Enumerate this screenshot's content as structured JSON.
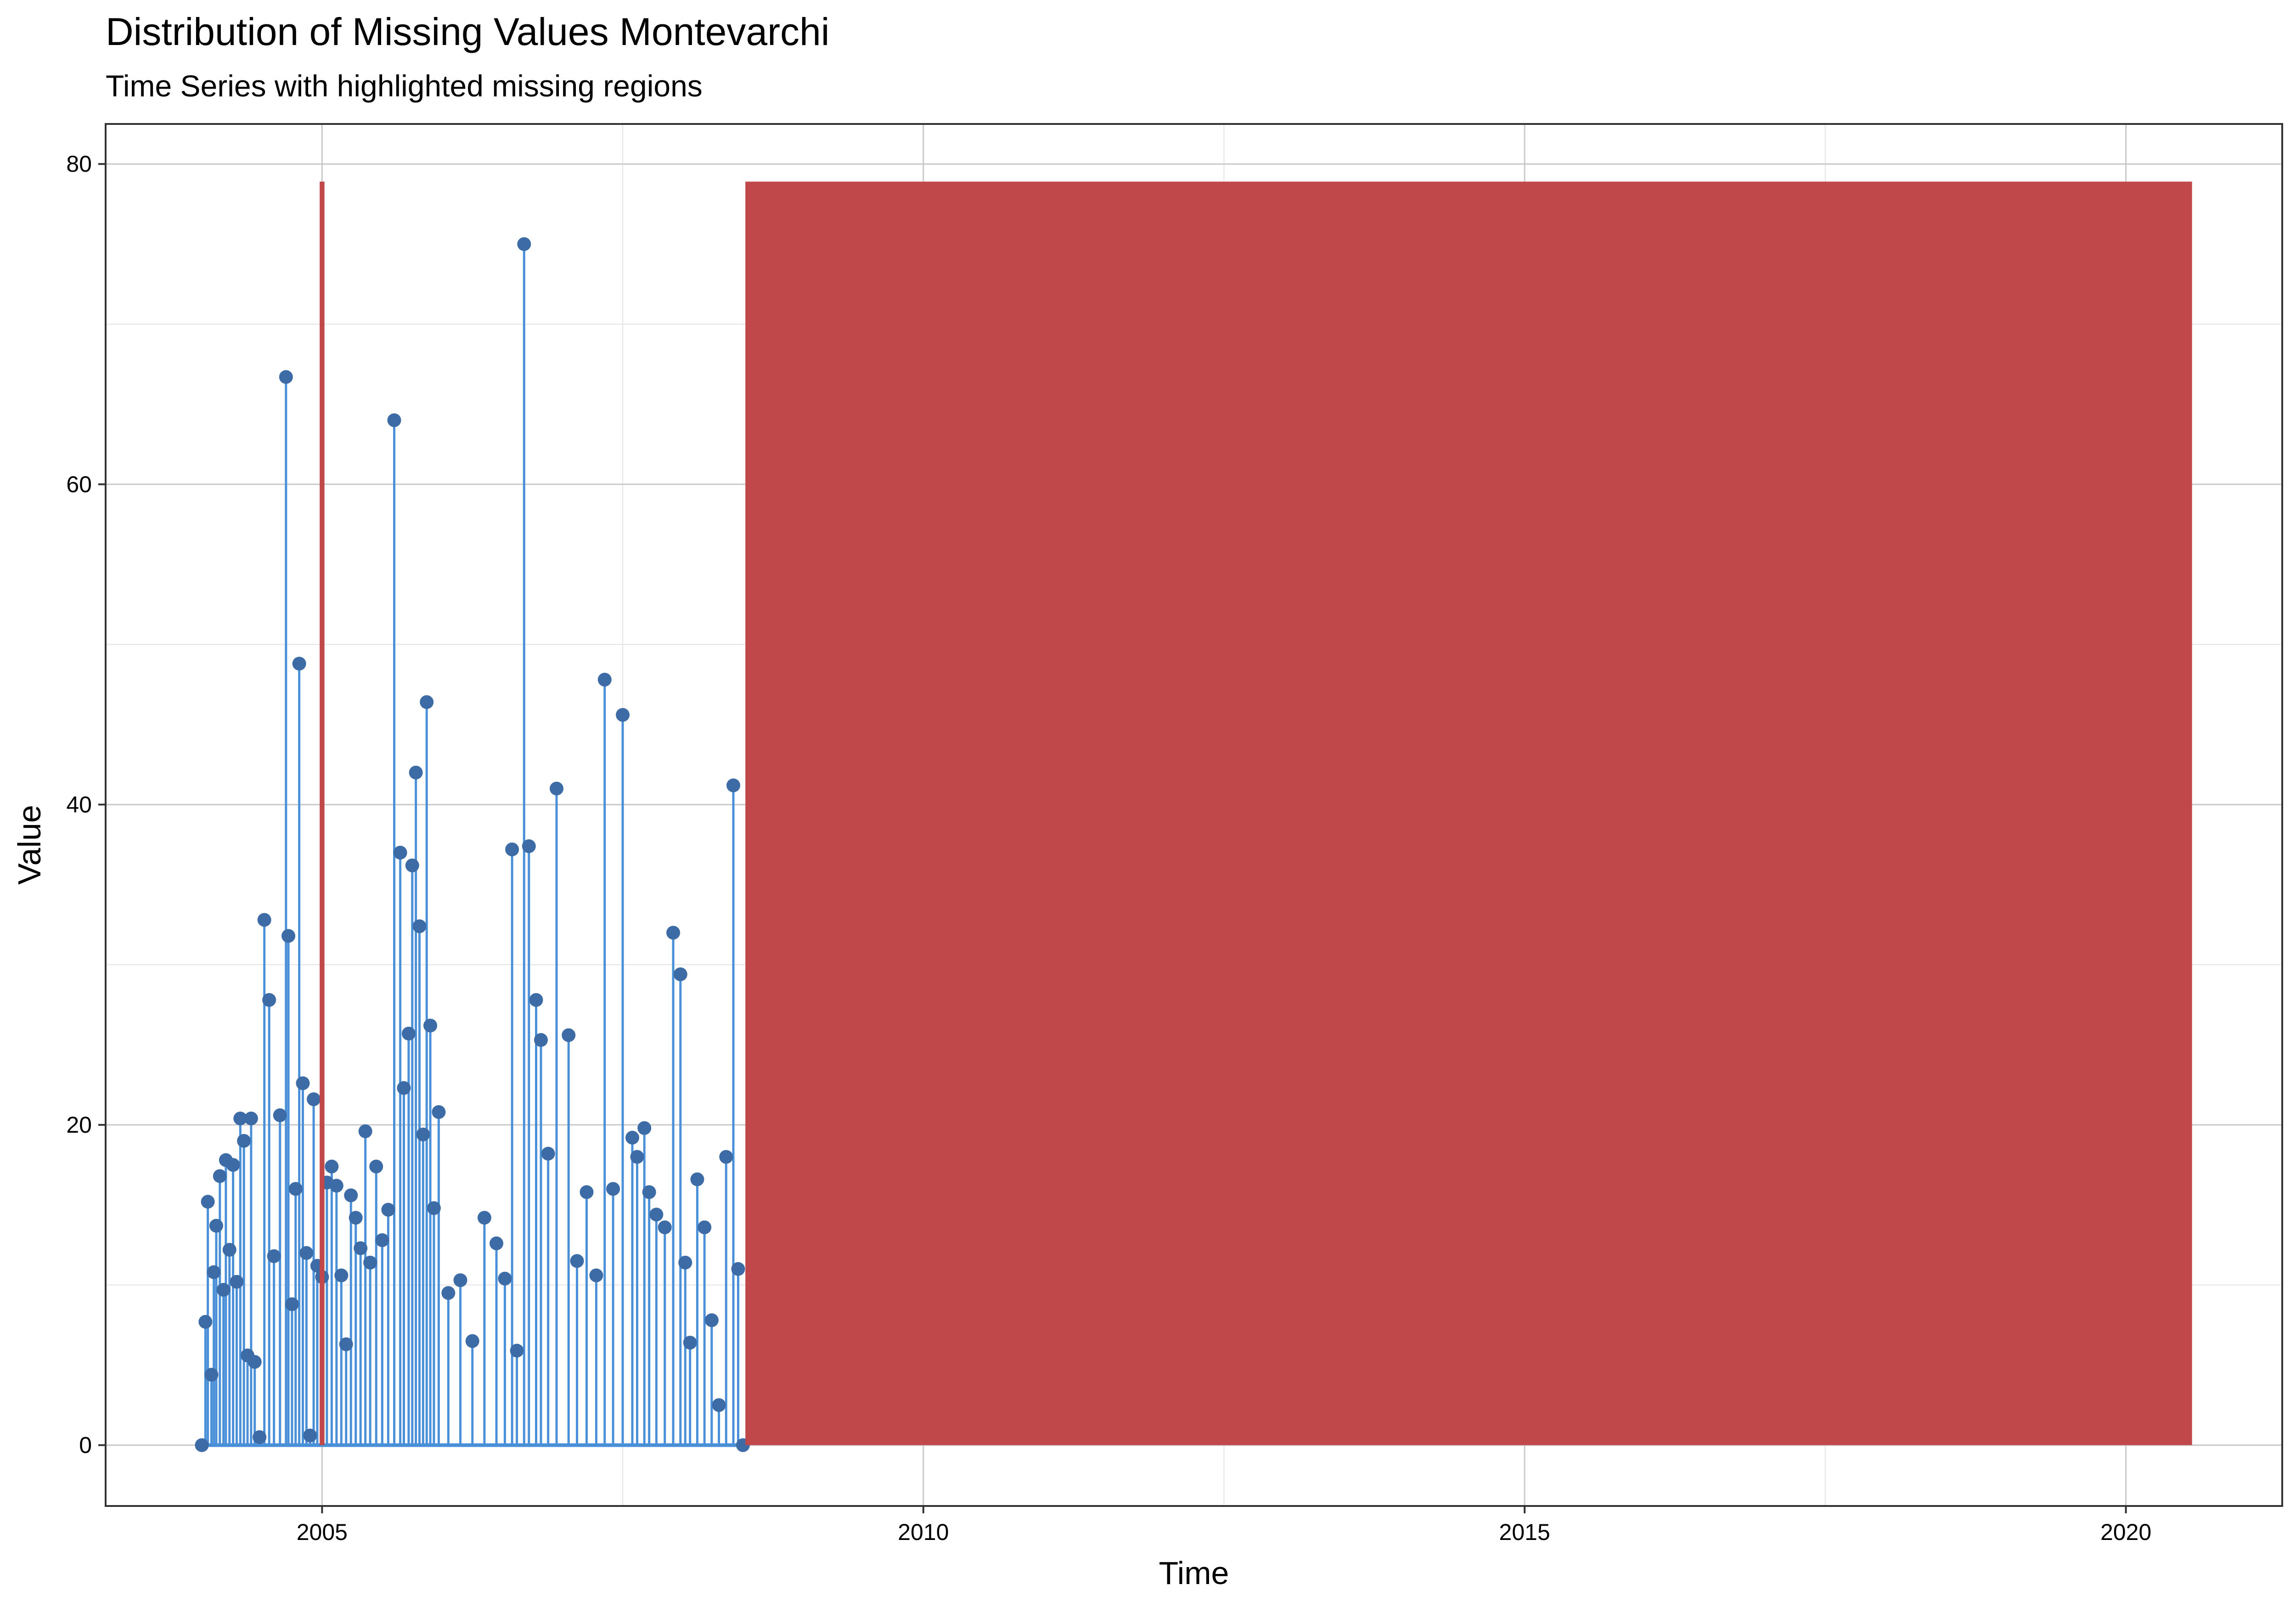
{
  "chart_data": {
    "type": "line",
    "title": "Distribution of Missing Values Montevarchi",
    "subtitle": "Time Series with highlighted missing regions",
    "xlabel": "Time",
    "ylabel": "Value",
    "xlim": [
      2003.2,
      2021.3
    ],
    "ylim": [
      -3.8,
      82.5
    ],
    "x_ticks": [
      2005,
      2010,
      2015,
      2020
    ],
    "y_ticks": [
      0,
      20,
      40,
      60,
      80
    ],
    "grid": true,
    "legend": "none",
    "series": [
      {
        "x": [
          2004.0,
          2004.03,
          2004.05,
          2004.08,
          2004.1,
          2004.12,
          2004.15,
          2004.18,
          2004.2,
          2004.23,
          2004.26,
          2004.29,
          2004.32,
          2004.35,
          2004.38,
          2004.41,
          2004.44,
          2004.48,
          2004.52,
          2004.56,
          2004.6,
          2004.65,
          2004.7,
          2004.72,
          2004.75,
          2004.78,
          2004.81,
          2004.84,
          2004.87,
          2004.9,
          2004.93,
          2004.96,
          2005.0,
          2005.04,
          2005.08,
          2005.12,
          2005.16,
          2005.2,
          2005.24,
          2005.28,
          2005.32,
          2005.36,
          2005.4,
          2005.45,
          2005.5,
          2005.55,
          2005.6,
          2005.65,
          2005.68,
          2005.72,
          2005.75,
          2005.78,
          2005.81,
          2005.84,
          2005.87,
          2005.9,
          2005.93,
          2005.97,
          2006.05,
          2006.15,
          2006.25,
          2006.35,
          2006.45,
          2006.52,
          2006.58,
          2006.62,
          2006.68,
          2006.72,
          2006.78,
          2006.82,
          2006.88,
          2006.95,
          2007.05,
          2007.12,
          2007.2,
          2007.28,
          2007.35,
          2007.42,
          2007.5,
          2007.58,
          2007.62,
          2007.68,
          2007.72,
          2007.78,
          2007.85,
          2007.92,
          2007.98,
          2008.02,
          2008.06,
          2008.12,
          2008.18,
          2008.24,
          2008.3,
          2008.36,
          2008.42,
          2008.46,
          2008.5
        ],
        "y": [
          0,
          7.7,
          15.2,
          4.4,
          10.8,
          13.7,
          16.8,
          9.7,
          17.8,
          12.2,
          17.5,
          10.2,
          20.4,
          19,
          5.6,
          20.4,
          5.2,
          0.5,
          32.8,
          27.8,
          11.8,
          20.6,
          66.7,
          31.8,
          8.8,
          16,
          48.8,
          22.6,
          12,
          0.6,
          21.6,
          11.2,
          10.5,
          16.4,
          17.4,
          16.2,
          10.6,
          6.3,
          15.6,
          14.2,
          12.3,
          19.6,
          11.4,
          17.4,
          12.8,
          14.7,
          64,
          37,
          22.3,
          25.7,
          36.2,
          42,
          32.4,
          19.4,
          46.4,
          26.2,
          14.8,
          20.8,
          9.5,
          10.3,
          6.5,
          14.2,
          12.6,
          10.4,
          37.2,
          5.9,
          75,
          37.4,
          27.8,
          25.3,
          18.2,
          41,
          25.6,
          11.5,
          15.8,
          10.6,
          47.8,
          16,
          45.6,
          19.2,
          18,
          19.8,
          15.8,
          14.4,
          13.6,
          32,
          29.4,
          11.4,
          6.4,
          16.6,
          13.6,
          7.8,
          2.5,
          18,
          41.2,
          11,
          0
        ]
      }
    ],
    "missing_regions": [
      {
        "x": [
          2004.98,
          2005.02
        ],
        "y": [
          0,
          78.9
        ]
      },
      {
        "x": [
          2008.52,
          2020.55
        ],
        "y": [
          0,
          78.9
        ]
      }
    ],
    "colors": {
      "line": "#4a90d9",
      "points": "#3d6ba6",
      "missing": "#c0474a",
      "grid_major": "#c9c9c9",
      "grid_minor": "#e3e3e3",
      "panel_border": "#333333"
    }
  }
}
